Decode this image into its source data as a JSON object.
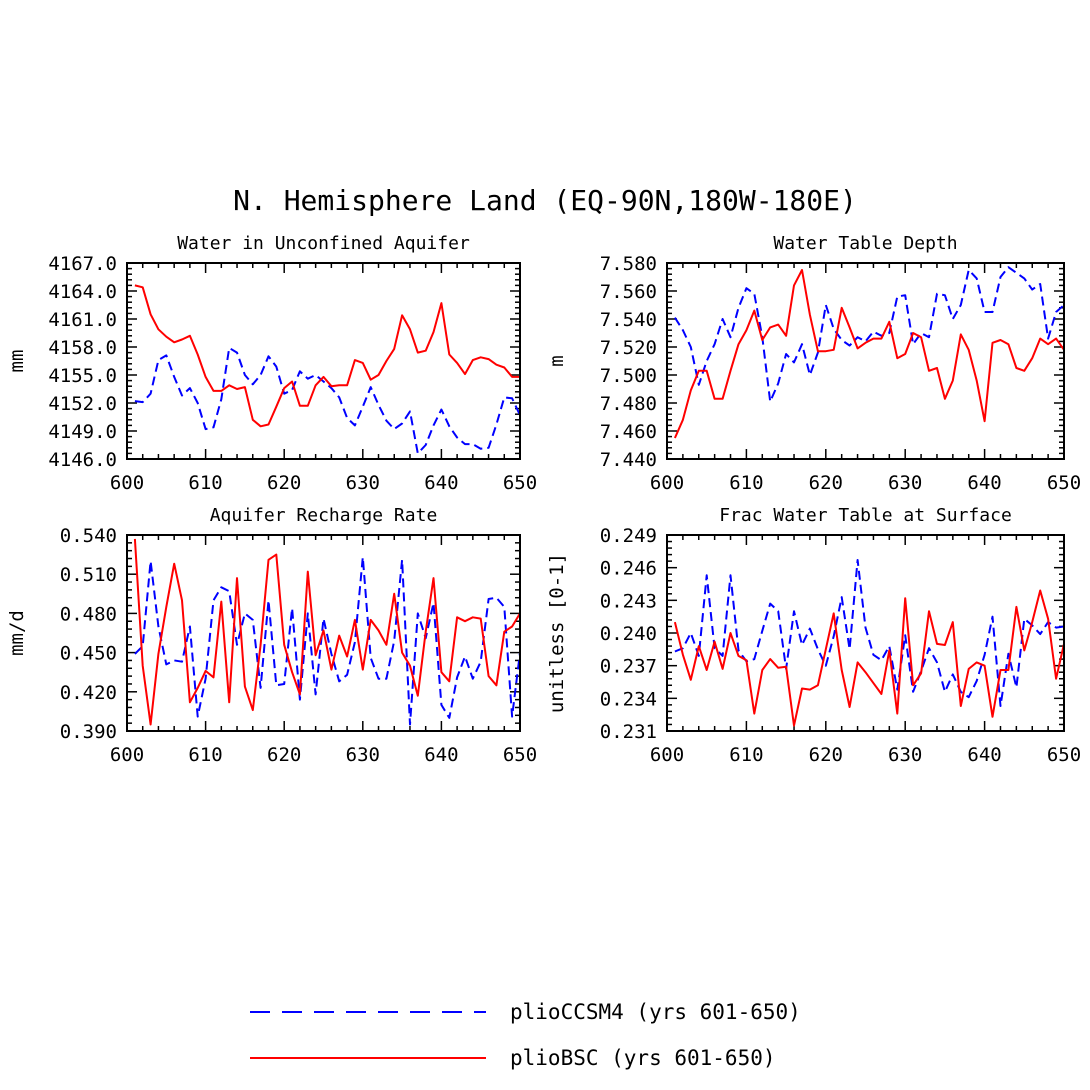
{
  "title": "N. Hemisphere Land (EQ-90N,180W-180E)",
  "legend": [
    {
      "label": "plioCCSM4 (yrs 601-650)",
      "color": "#0000ff",
      "dash": "dashed"
    },
    {
      "label": "plioBSC (yrs 601-650)",
      "color": "#ff0000",
      "dash": "solid"
    }
  ],
  "chart_data": [
    {
      "type": "line",
      "title": "Water in Unconfined Aquifer",
      "xlabel": "",
      "ylabel": "mm",
      "xlim": [
        600,
        650
      ],
      "ylim": [
        4146.0,
        4167.0
      ],
      "xticks": [
        "600",
        "610",
        "620",
        "630",
        "640",
        "650"
      ],
      "yticks": [
        "4146.0",
        "4149.0",
        "4152.0",
        "4155.0",
        "4158.0",
        "4161.0",
        "4164.0",
        "4167.0"
      ],
      "x": [
        601,
        602,
        603,
        604,
        605,
        606,
        607,
        608,
        609,
        610,
        611,
        612,
        613,
        614,
        615,
        616,
        617,
        618,
        619,
        620,
        621,
        622,
        623,
        624,
        625,
        626,
        627,
        628,
        629,
        630,
        631,
        632,
        633,
        634,
        635,
        636,
        637,
        638,
        639,
        640,
        641,
        642,
        643,
        644,
        645,
        646,
        647,
        648,
        649,
        650
      ],
      "series": [
        {
          "name": "plioCCSM4 (yrs 601-650)",
          "color": "#0000ff",
          "dash": "dashed",
          "values": [
            4152.2,
            4152.1,
            4153.0,
            4156.6,
            4157.1,
            4154.8,
            4152.8,
            4153.6,
            4152.0,
            4149.2,
            4149.4,
            4152.4,
            4157.9,
            4157.4,
            4155.0,
            4154.0,
            4155.0,
            4157.0,
            4155.9,
            4153.0,
            4153.4,
            4155.4,
            4154.6,
            4155.0,
            4154.3,
            4153.6,
            4152.6,
            4150.4,
            4149.6,
            4151.6,
            4153.7,
            4151.8,
            4150.1,
            4149.2,
            4149.8,
            4151.1,
            4146.6,
            4147.5,
            4149.6,
            4151.3,
            4149.5,
            4148.3,
            4147.6,
            4147.6,
            4147.1,
            4147.2,
            4149.7,
            4152.6,
            4152.5,
            4150.7
          ]
        },
        {
          "name": "plioBSC (yrs 601-650)",
          "color": "#ff0000",
          "dash": "solid",
          "values": [
            4164.6,
            4164.4,
            4161.5,
            4159.9,
            4159.1,
            4158.5,
            4158.8,
            4159.2,
            4157.2,
            4154.8,
            4153.3,
            4153.3,
            4153.9,
            4153.5,
            4153.7,
            4150.2,
            4149.5,
            4149.7,
            4151.6,
            4153.6,
            4154.3,
            4151.7,
            4151.7,
            4153.9,
            4154.8,
            4153.8,
            4153.9,
            4153.9,
            4156.6,
            4156.3,
            4154.5,
            4155.0,
            4156.5,
            4157.8,
            4161.4,
            4159.9,
            4157.4,
            4157.6,
            4159.6,
            4162.7,
            4157.2,
            4156.3,
            4155.1,
            4156.6,
            4156.9,
            4156.7,
            4156.1,
            4155.8,
            4154.8,
            4154.8
          ]
        }
      ]
    },
    {
      "type": "line",
      "title": "Water Table Depth",
      "xlabel": "",
      "ylabel": "m",
      "xlim": [
        600,
        650
      ],
      "ylim": [
        7.44,
        7.58
      ],
      "xticks": [
        "600",
        "610",
        "620",
        "630",
        "640",
        "650"
      ],
      "yticks": [
        "7.440",
        "7.460",
        "7.480",
        "7.500",
        "7.520",
        "7.540",
        "7.560",
        "7.580"
      ],
      "x": [
        601,
        602,
        603,
        604,
        605,
        606,
        607,
        608,
        609,
        610,
        611,
        612,
        613,
        614,
        615,
        616,
        617,
        618,
        619,
        620,
        621,
        622,
        623,
        624,
        625,
        626,
        627,
        628,
        629,
        630,
        631,
        632,
        633,
        634,
        635,
        636,
        637,
        638,
        639,
        640,
        641,
        642,
        643,
        644,
        645,
        646,
        647,
        648,
        649,
        650
      ],
      "series": [
        {
          "name": "plioCCSM4 (yrs 601-650)",
          "color": "#0000ff",
          "dash": "dashed",
          "values": [
            7.541,
            7.532,
            7.52,
            7.493,
            7.51,
            7.522,
            7.54,
            7.527,
            7.548,
            7.562,
            7.558,
            7.527,
            7.481,
            7.494,
            7.515,
            7.509,
            7.522,
            7.5,
            7.516,
            7.55,
            7.533,
            7.525,
            7.521,
            7.527,
            7.524,
            7.531,
            7.528,
            7.53,
            7.556,
            7.557,
            7.522,
            7.53,
            7.527,
            7.558,
            7.557,
            7.54,
            7.55,
            7.575,
            7.569,
            7.545,
            7.545,
            7.57,
            7.577,
            7.573,
            7.569,
            7.561,
            7.565,
            7.526,
            7.545,
            7.55
          ]
        },
        {
          "name": "plioBSC (yrs 601-650)",
          "color": "#ff0000",
          "dash": "solid",
          "values": [
            7.455,
            7.468,
            7.489,
            7.503,
            7.503,
            7.483,
            7.483,
            7.503,
            7.522,
            7.532,
            7.546,
            7.525,
            7.534,
            7.536,
            7.528,
            7.564,
            7.575,
            7.543,
            7.517,
            7.517,
            7.518,
            7.548,
            7.534,
            7.519,
            7.523,
            7.526,
            7.526,
            7.538,
            7.512,
            7.515,
            7.53,
            7.527,
            7.503,
            7.505,
            7.483,
            7.496,
            7.529,
            7.518,
            7.496,
            7.467,
            7.523,
            7.525,
            7.522,
            7.505,
            7.503,
            7.512,
            7.526,
            7.522,
            7.526,
            7.518
          ]
        }
      ]
    },
    {
      "type": "line",
      "title": "Aquifer Recharge Rate",
      "xlabel": "",
      "ylabel": "mm/d",
      "xlim": [
        600,
        650
      ],
      "ylim": [
        0.39,
        0.54
      ],
      "xticks": [
        "600",
        "610",
        "620",
        "630",
        "640",
        "650"
      ],
      "yticks": [
        "0.390",
        "0.420",
        "0.450",
        "0.480",
        "0.510",
        "0.540"
      ],
      "x": [
        601,
        602,
        603,
        604,
        605,
        606,
        607,
        608,
        609,
        610,
        611,
        612,
        613,
        614,
        615,
        616,
        617,
        618,
        619,
        620,
        621,
        622,
        623,
        624,
        625,
        626,
        627,
        628,
        629,
        630,
        631,
        632,
        633,
        634,
        635,
        636,
        637,
        638,
        639,
        640,
        641,
        642,
        643,
        644,
        645,
        646,
        647,
        648,
        649,
        650
      ],
      "series": [
        {
          "name": "plioCCSM4 (yrs 601-650)",
          "color": "#0000ff",
          "dash": "dashed",
          "values": [
            0.449,
            0.455,
            0.52,
            0.47,
            0.441,
            0.444,
            0.443,
            0.47,
            0.401,
            0.43,
            0.49,
            0.5,
            0.497,
            0.456,
            0.48,
            0.475,
            0.423,
            0.49,
            0.425,
            0.426,
            0.484,
            0.414,
            0.48,
            0.418,
            0.476,
            0.449,
            0.428,
            0.433,
            0.458,
            0.523,
            0.446,
            0.43,
            0.43,
            0.459,
            0.521,
            0.395,
            0.48,
            0.461,
            0.488,
            0.41,
            0.4,
            0.431,
            0.447,
            0.43,
            0.443,
            0.491,
            0.492,
            0.485,
            0.401,
            0.45
          ]
        },
        {
          "name": "plioBSC (yrs 601-650)",
          "color": "#ff0000",
          "dash": "solid",
          "values": [
            0.537,
            0.44,
            0.395,
            0.449,
            0.485,
            0.518,
            0.49,
            0.412,
            0.423,
            0.436,
            0.431,
            0.489,
            0.412,
            0.507,
            0.424,
            0.406,
            0.456,
            0.521,
            0.525,
            0.456,
            0.435,
            0.418,
            0.512,
            0.448,
            0.467,
            0.437,
            0.463,
            0.447,
            0.475,
            0.437,
            0.475,
            0.467,
            0.456,
            0.495,
            0.45,
            0.44,
            0.417,
            0.466,
            0.507,
            0.435,
            0.428,
            0.477,
            0.474,
            0.477,
            0.476,
            0.432,
            0.425,
            0.466,
            0.47,
            0.48
          ]
        }
      ]
    },
    {
      "type": "line",
      "title": "Frac Water Table at Surface",
      "xlabel": "",
      "ylabel": "unitless [0-1]",
      "xlim": [
        600,
        650
      ],
      "ylim": [
        0.231,
        0.249
      ],
      "xticks": [
        "600",
        "610",
        "620",
        "630",
        "640",
        "650"
      ],
      "yticks": [
        "0.231",
        "0.234",
        "0.237",
        "0.240",
        "0.243",
        "0.246",
        "0.249"
      ],
      "x": [
        601,
        602,
        603,
        604,
        605,
        606,
        607,
        608,
        609,
        610,
        611,
        612,
        613,
        614,
        615,
        616,
        617,
        618,
        619,
        620,
        621,
        622,
        623,
        624,
        625,
        626,
        627,
        628,
        629,
        630,
        631,
        632,
        633,
        634,
        635,
        636,
        637,
        638,
        639,
        640,
        641,
        642,
        643,
        644,
        645,
        646,
        647,
        648,
        649,
        650
      ],
      "series": [
        {
          "name": "plioCCSM4 (yrs 601-650)",
          "color": "#0000ff",
          "dash": "dashed",
          "values": [
            0.2383,
            0.2386,
            0.24,
            0.2379,
            0.2453,
            0.2386,
            0.2379,
            0.2453,
            0.2384,
            0.2374,
            0.2376,
            0.2402,
            0.2427,
            0.242,
            0.2367,
            0.242,
            0.2389,
            0.2404,
            0.2385,
            0.237,
            0.2397,
            0.2433,
            0.2385,
            0.2467,
            0.2405,
            0.238,
            0.2375,
            0.2388,
            0.2348,
            0.2398,
            0.2346,
            0.2365,
            0.2386,
            0.2373,
            0.2346,
            0.2362,
            0.2346,
            0.2341,
            0.2356,
            0.238,
            0.2415,
            0.2333,
            0.2381,
            0.235,
            0.2413,
            0.2407,
            0.2399,
            0.241,
            0.2405,
            0.2406
          ]
        },
        {
          "name": "plioBSC (yrs 601-650)",
          "color": "#ff0000",
          "dash": "solid",
          "values": [
            0.241,
            0.238,
            0.2357,
            0.2388,
            0.2366,
            0.2392,
            0.2367,
            0.24,
            0.2379,
            0.2375,
            0.2326,
            0.2366,
            0.2376,
            0.2368,
            0.2369,
            0.2315,
            0.2349,
            0.2348,
            0.2352,
            0.2385,
            0.2418,
            0.2366,
            0.2332,
            0.2373,
            0.2364,
            0.2354,
            0.2344,
            0.2384,
            0.2326,
            0.2432,
            0.2352,
            0.2363,
            0.242,
            0.239,
            0.2389,
            0.241,
            0.2333,
            0.2367,
            0.2373,
            0.237,
            0.2323,
            0.2366,
            0.2366,
            0.2424,
            0.2384,
            0.241,
            0.2439,
            0.2413,
            0.2358,
            0.239
          ]
        }
      ]
    }
  ]
}
